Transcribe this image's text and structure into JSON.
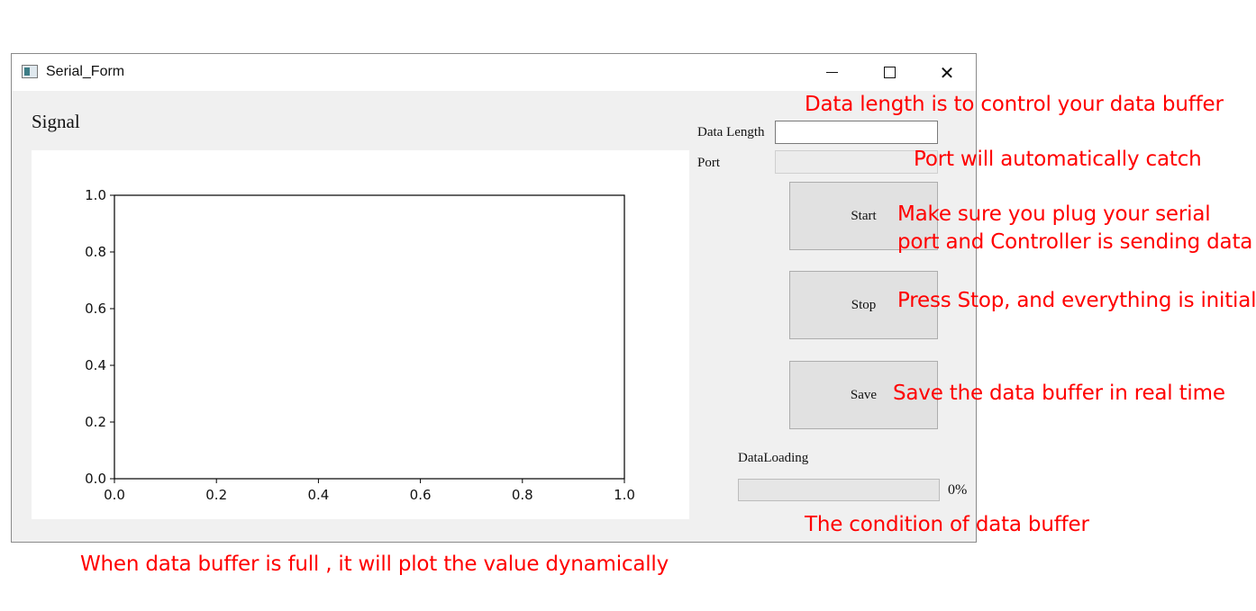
{
  "window": {
    "title": "Serial_Form",
    "icon": "app-window-icon",
    "controls": [
      "minimize-icon",
      "maximize-icon",
      "close-icon"
    ]
  },
  "left_panel": {
    "heading": "Signal"
  },
  "chart_data": {
    "type": "line",
    "title": "",
    "xlabel": "",
    "ylabel": "",
    "series": [],
    "xlim": [
      0.0,
      1.0
    ],
    "ylim": [
      0.0,
      1.0
    ],
    "x_ticks": [
      "0.0",
      "0.2",
      "0.4",
      "0.6",
      "0.8",
      "1.0"
    ],
    "y_ticks": [
      "0.0",
      "0.2",
      "0.4",
      "0.6",
      "0.8",
      "1.0"
    ],
    "grid": false
  },
  "right_panel": {
    "data_length_label": "Data Length",
    "data_length_value": "",
    "port_label": "Port",
    "port_value": "",
    "start_label": "Start",
    "stop_label": "Stop",
    "save_label": "Save",
    "loading_label": "DataLoading",
    "progress_value": 0,
    "progress_text": "0%"
  },
  "annotations": {
    "data_length": "Data length is to control your data buffer",
    "port": "Port will automatically catch",
    "start_line1": "Make sure you plug your serial",
    "start_line2": "port and Controller is sending data",
    "stop": "Press Stop, and everything is initial",
    "save": "Save the data buffer in real time",
    "progress": "The condition of data buffer",
    "plot": "When data buffer is full , it will plot the value dynamically"
  },
  "colors": {
    "annotation": "#ff0000",
    "window_bg": "#f0f0f0",
    "button_bg": "#e1e1e1"
  }
}
